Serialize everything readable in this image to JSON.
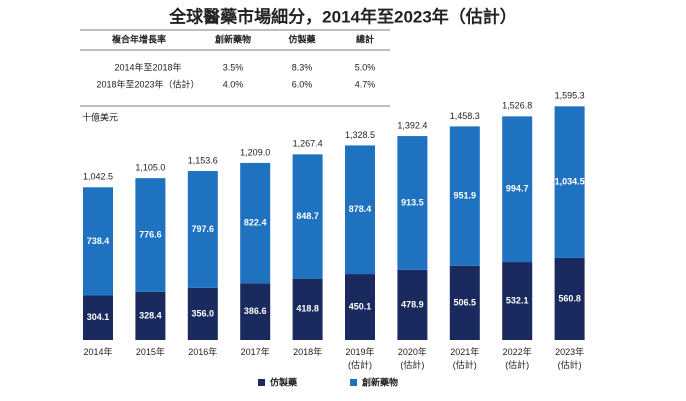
{
  "chart_data": {
    "type": "stacked-bar",
    "title": "全球醫藥市場細分，2014年至2023年（估計）",
    "table": {
      "header": [
        "複合年增長率",
        "創新藥物",
        "仿製藥",
        "總計"
      ],
      "rows": [
        [
          "2014年至2018年",
          "3.5%",
          "8.3%",
          "5.0%"
        ],
        [
          "2018年至2023年（估計）",
          "4.0%",
          "6.0%",
          "4.7%"
        ]
      ]
    },
    "unit_label": "十億美元",
    "categories": [
      "2014年",
      "2015年",
      "2016年",
      "2017年",
      "2018年",
      "2019年\n(估計)",
      "2020年\n(估計)",
      "2021年\n(估計)",
      "2022年\n(估計)",
      "2023年\n(估計)"
    ],
    "series": [
      {
        "name": "仿製藥",
        "color": "#1b2a5e",
        "values": [
          304.1,
          328.4,
          356.0,
          386.6,
          418.8,
          450.1,
          478.9,
          506.5,
          532.1,
          560.8
        ],
        "value_labels": [
          "304.1",
          "328.4",
          "356.0",
          "386.6",
          "418.8",
          "450.1",
          "478.9",
          "506.5",
          "532.1",
          "560.8"
        ]
      },
      {
        "name": "創新藥物",
        "color": "#1f72bf",
        "values": [
          738.4,
          776.6,
          797.6,
          822.4,
          848.7,
          878.4,
          913.5,
          951.9,
          994.7,
          1034.5
        ],
        "value_labels": [
          "738.4",
          "776.6",
          "797.6",
          "822.4",
          "848.7",
          "878.4",
          "913.5",
          "951.9",
          "994.7",
          "1,034.5"
        ]
      }
    ],
    "totals": {
      "values": [
        1042.5,
        1105.0,
        1153.6,
        1209.0,
        1267.4,
        1328.5,
        1392.4,
        1458.3,
        1526.8,
        1595.3
      ],
      "value_labels": [
        "1,042.5",
        "1,105.0",
        "1,153.6",
        "1,209.0",
        "1,267.4",
        "1,328.5",
        "1,392.4",
        "1,458.3",
        "1,526.8",
        "1,595.3"
      ]
    },
    "ylim": [
      0,
      1700
    ]
  }
}
